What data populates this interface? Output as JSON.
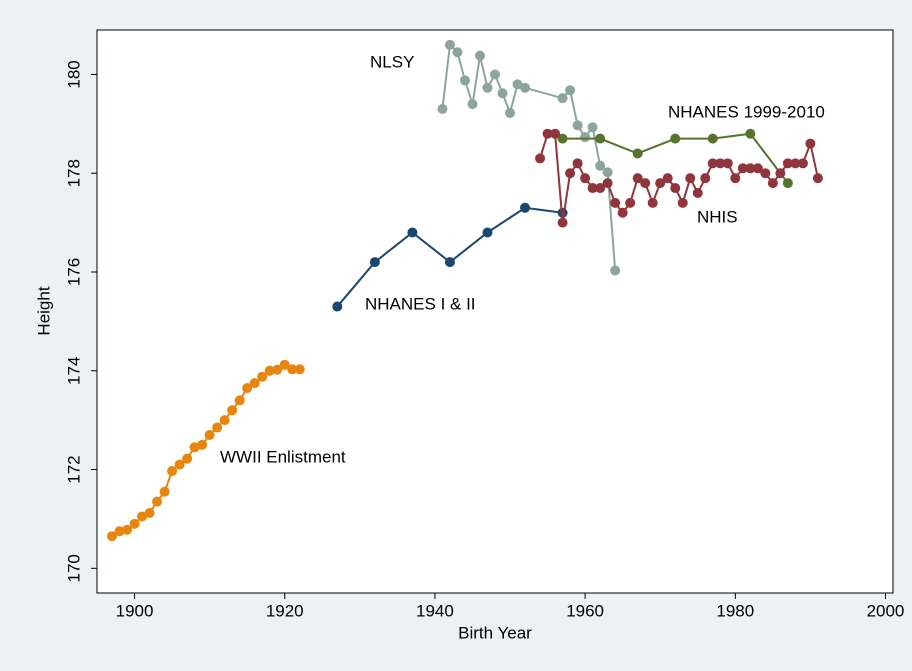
{
  "chart_data": {
    "type": "line",
    "xlabel": "Birth Year",
    "ylabel": "Height",
    "xlim": [
      1895,
      2001
    ],
    "ylim": [
      169.5,
      180.9
    ],
    "xticks": [
      1900,
      1920,
      1940,
      1960,
      1980,
      2000
    ],
    "yticks": [
      170,
      172,
      174,
      176,
      178,
      180
    ],
    "grid": false,
    "series": [
      {
        "name": "WWII Enlistment",
        "color": "#e8850c",
        "x": [
          1897,
          1898,
          1899,
          1900,
          1901,
          1902,
          1903,
          1904,
          1905,
          1906,
          1907,
          1908,
          1909,
          1910,
          1911,
          1912,
          1913,
          1914,
          1915,
          1916,
          1917,
          1918,
          1919,
          1920,
          1921,
          1922
        ],
        "values": [
          170.65,
          170.75,
          170.78,
          170.9,
          171.05,
          171.12,
          171.35,
          171.55,
          171.97,
          172.1,
          172.22,
          172.45,
          172.5,
          172.7,
          172.85,
          173.0,
          173.2,
          173.4,
          173.65,
          173.75,
          173.88,
          174.0,
          174.02,
          174.12,
          174.03,
          174.03
        ]
      },
      {
        "name": "NHANES I & II",
        "color": "#1a476f",
        "x": [
          1927,
          1932,
          1937,
          1942,
          1947,
          1952,
          1957
        ],
        "values": [
          175.3,
          176.2,
          176.8,
          176.2,
          176.8,
          177.3,
          177.2
        ]
      },
      {
        "name": "NLSY",
        "color": "#8ca59c",
        "x": [
          1941,
          1942,
          1943,
          1944,
          1945,
          1946,
          1947,
          1948,
          1949,
          1950,
          1951,
          1952,
          1957,
          1958,
          1959,
          1960,
          1961,
          1962,
          1963,
          1964
        ],
        "values": [
          179.3,
          180.6,
          180.45,
          179.88,
          179.4,
          180.38,
          179.73,
          180.0,
          179.62,
          179.22,
          179.8,
          179.73,
          179.52,
          179.68,
          178.97,
          178.73,
          178.93,
          178.15,
          178.02,
          176.03
        ]
      },
      {
        "name": "NHANES 1999-2010",
        "color": "#55752f",
        "x": [
          1957,
          1962,
          1967,
          1972,
          1977,
          1982,
          1987
        ],
        "values": [
          178.7,
          178.7,
          178.4,
          178.7,
          178.7,
          178.8,
          177.8
        ]
      },
      {
        "name": "NHIS",
        "color": "#90353b",
        "x": [
          1954,
          1955,
          1956,
          1957,
          1958,
          1959,
          1960,
          1961,
          1962,
          1963,
          1964,
          1965,
          1966,
          1967,
          1968,
          1969,
          1970,
          1971,
          1972,
          1973,
          1974,
          1975,
          1976,
          1977,
          1978,
          1979,
          1980,
          1981,
          1982,
          1983,
          1984,
          1985,
          1986,
          1987,
          1988,
          1989,
          1990,
          1991
        ],
        "values": [
          178.3,
          178.8,
          178.8,
          177.0,
          178.0,
          178.2,
          177.9,
          177.7,
          177.7,
          177.8,
          177.4,
          177.2,
          177.4,
          177.9,
          177.8,
          177.4,
          177.8,
          177.9,
          177.7,
          177.4,
          177.9,
          177.6,
          177.9,
          178.2,
          178.2,
          178.2,
          177.9,
          178.1,
          178.1,
          178.1,
          178.0,
          177.8,
          178.0,
          178.2,
          178.2,
          178.2,
          178.6,
          177.9
        ]
      }
    ]
  }
}
